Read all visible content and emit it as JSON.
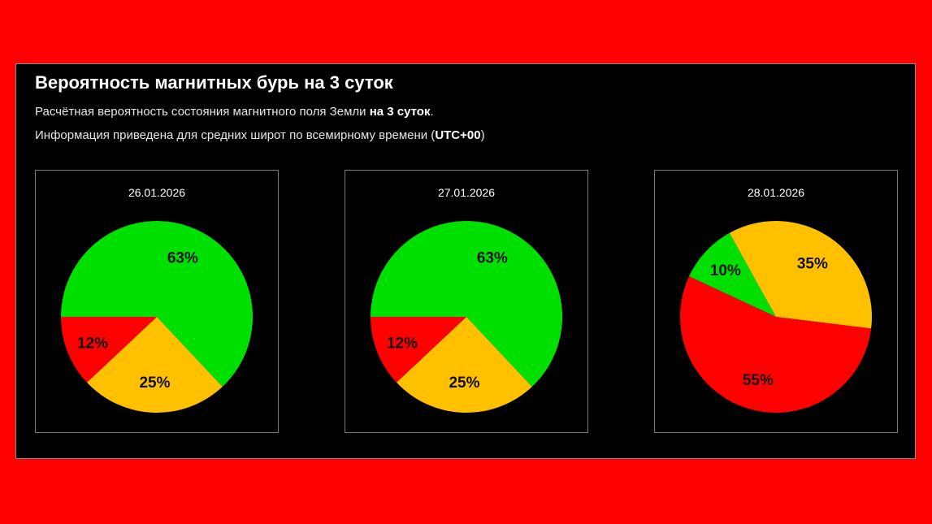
{
  "header": {
    "title": "Вероятность магнитных бурь на 3 суток",
    "line1_text": "Расчётная вероятность состояния магнитного поля Земли ",
    "line1_bold": "на 3 суток",
    "line1_end": ".",
    "line2_text": "Информация приведена для средних широт по всемирному времени (",
    "line2_bold": "UTC+00",
    "line2_end": ")"
  },
  "colors": {
    "background": "#ff0000",
    "panel": "#000000",
    "green": "#00e000",
    "yellow": "#ffc000",
    "red": "#ff0000"
  },
  "chart_data": [
    {
      "type": "pie",
      "title": "26.01.2026",
      "slices": [
        {
          "value": 63,
          "label": "63%",
          "color": "#00e000"
        },
        {
          "value": 25,
          "label": "25%",
          "color": "#ffc000"
        },
        {
          "value": 12,
          "label": "12%",
          "color": "#ff0000"
        }
      ]
    },
    {
      "type": "pie",
      "title": "27.01.2026",
      "slices": [
        {
          "value": 63,
          "label": "63%",
          "color": "#00e000"
        },
        {
          "value": 25,
          "label": "25%",
          "color": "#ffc000"
        },
        {
          "value": 12,
          "label": "12%",
          "color": "#ff0000"
        }
      ]
    },
    {
      "type": "pie",
      "title": "28.01.2026",
      "slices": [
        {
          "value": 10,
          "label": "10%",
          "color": "#00e000"
        },
        {
          "value": 35,
          "label": "35%",
          "color": "#ffc000"
        },
        {
          "value": 55,
          "label": "55%",
          "color": "#ff0000"
        }
      ]
    }
  ]
}
